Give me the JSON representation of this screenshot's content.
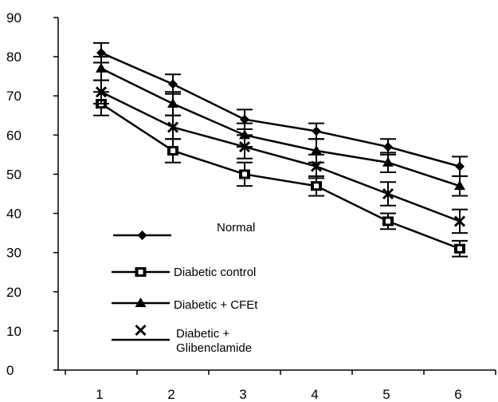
{
  "chart_data": {
    "type": "line",
    "x": [
      1,
      2,
      3,
      4,
      5,
      6
    ],
    "y_ticks": [
      0,
      10,
      20,
      30,
      40,
      50,
      60,
      70,
      80,
      90
    ],
    "x_ticks": [
      "1",
      "2",
      "3",
      "4",
      "5",
      "6"
    ],
    "ylim": [
      0,
      90
    ],
    "grid": false,
    "legend_position": "bottom-left",
    "series": [
      {
        "name": "Normal",
        "marker": "diamond",
        "values": [
          81,
          73,
          64,
          61,
          57,
          52
        ],
        "errors": [
          2.5,
          2.5,
          2.5,
          2,
          2,
          2.5
        ]
      },
      {
        "name": "Diabetic control",
        "marker": "square",
        "values": [
          68,
          56,
          50,
          47,
          38,
          31
        ],
        "errors": [
          3,
          3,
          3,
          2.5,
          2,
          2
        ]
      },
      {
        "name": "Diabetic + CFEt",
        "marker": "triangle",
        "values": [
          77,
          68,
          60,
          56,
          53,
          47
        ],
        "errors": [
          3,
          3,
          3,
          3,
          2.5,
          2.5
        ]
      },
      {
        "name": "Diabetic + Glibenclamide",
        "legend_lines": [
          "Diabetic +",
          "Glibenclamide"
        ],
        "marker": "x",
        "values": [
          71,
          62,
          57,
          52,
          45,
          38
        ],
        "errors": [
          3,
          3,
          3,
          3,
          3,
          3
        ]
      }
    ]
  }
}
